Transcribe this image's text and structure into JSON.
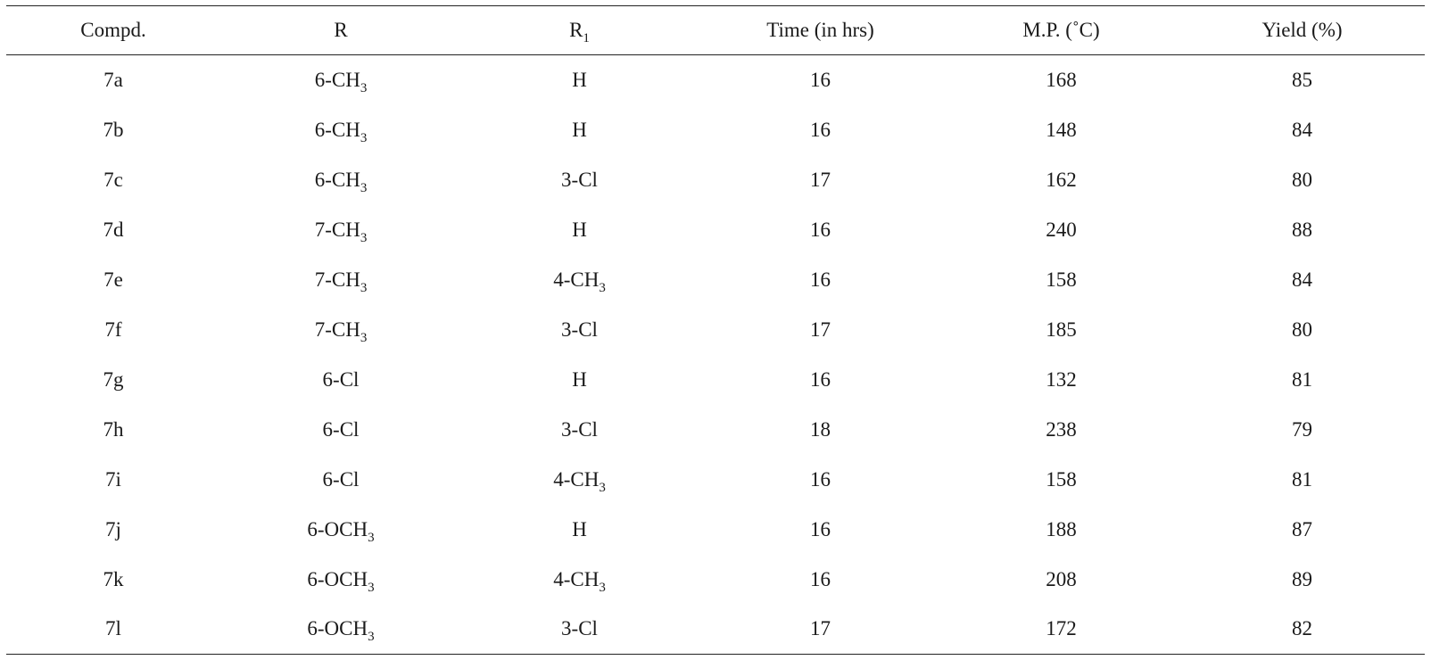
{
  "table": {
    "headers": [
      {
        "main": "Compd.",
        "sub": ""
      },
      {
        "main": "R",
        "sub": ""
      },
      {
        "main": "R",
        "sub": "1"
      },
      {
        "main": "Time (in hrs)",
        "sub": ""
      },
      {
        "main": "M.P. (˚C)",
        "sub": ""
      },
      {
        "main": "Yield (%)",
        "sub": ""
      }
    ],
    "rows": [
      {
        "compd": "7a",
        "r": {
          "main": "6-CH",
          "sub": "3"
        },
        "r1": {
          "main": "H",
          "sub": ""
        },
        "time": "16",
        "mp": "168",
        "yield": "85"
      },
      {
        "compd": "7b",
        "r": {
          "main": "6-CH",
          "sub": "3"
        },
        "r1": {
          "main": "H",
          "sub": ""
        },
        "time": "16",
        "mp": "148",
        "yield": "84"
      },
      {
        "compd": "7c",
        "r": {
          "main": "6-CH",
          "sub": "3"
        },
        "r1": {
          "main": "3-Cl",
          "sub": ""
        },
        "time": "17",
        "mp": "162",
        "yield": "80"
      },
      {
        "compd": "7d",
        "r": {
          "main": "7-CH",
          "sub": "3"
        },
        "r1": {
          "main": "H",
          "sub": ""
        },
        "time": "16",
        "mp": "240",
        "yield": "88"
      },
      {
        "compd": "7e",
        "r": {
          "main": "7-CH",
          "sub": "3"
        },
        "r1": {
          "main": "4-CH",
          "sub": "3"
        },
        "time": "16",
        "mp": "158",
        "yield": "84"
      },
      {
        "compd": "7f",
        "r": {
          "main": "7-CH",
          "sub": "3"
        },
        "r1": {
          "main": "3-Cl",
          "sub": ""
        },
        "time": "17",
        "mp": "185",
        "yield": "80"
      },
      {
        "compd": "7g",
        "r": {
          "main": "6-Cl",
          "sub": ""
        },
        "r1": {
          "main": "H",
          "sub": ""
        },
        "time": "16",
        "mp": "132",
        "yield": "81"
      },
      {
        "compd": "7h",
        "r": {
          "main": "6-Cl",
          "sub": ""
        },
        "r1": {
          "main": "3-Cl",
          "sub": ""
        },
        "time": "18",
        "mp": "238",
        "yield": "79"
      },
      {
        "compd": "7i",
        "r": {
          "main": "6-Cl",
          "sub": ""
        },
        "r1": {
          "main": "4-CH",
          "sub": "3"
        },
        "time": "16",
        "mp": "158",
        "yield": "81"
      },
      {
        "compd": "7j",
        "r": {
          "main": "6-OCH",
          "sub": "3"
        },
        "r1": {
          "main": "H",
          "sub": ""
        },
        "time": "16",
        "mp": "188",
        "yield": "87"
      },
      {
        "compd": "7k",
        "r": {
          "main": "6-OCH",
          "sub": "3"
        },
        "r1": {
          "main": "4-CH",
          "sub": "3"
        },
        "time": "16",
        "mp": "208",
        "yield": "89"
      },
      {
        "compd": "7l",
        "r": {
          "main": "6-OCH",
          "sub": "3"
        },
        "r1": {
          "main": "3-Cl",
          "sub": ""
        },
        "time": "17",
        "mp": "172",
        "yield": "82"
      }
    ]
  }
}
